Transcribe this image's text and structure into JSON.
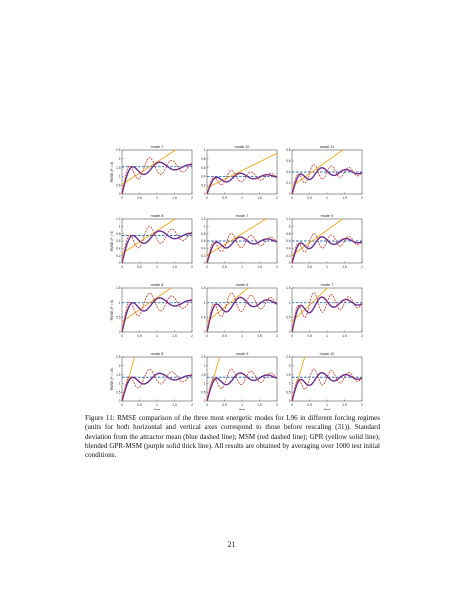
{
  "figure": {
    "ylabel_tpl": "RMSE (F = {F})",
    "xlabel": "time",
    "xticks": [
      "0",
      "0.5",
      "1",
      "1.5",
      "2"
    ],
    "colors": {
      "std": "#2d6fb3",
      "msm": "#c0392b",
      "gpr": "#f0a818",
      "blend": "#6a2c91"
    },
    "chart_data": [
      {
        "type": "line",
        "title": "mode 7",
        "forcing": "F = 4",
        "ylim": [
          0,
          2.5
        ],
        "yticks": [
          "0",
          "0.5",
          "1",
          "1.5",
          "2",
          "2.5"
        ],
        "std": 1.55
      },
      {
        "type": "line",
        "title": "mode 10",
        "forcing": "F = 4",
        "ylim": [
          0,
          1
        ],
        "yticks": [
          "0",
          "0.2",
          "0.4",
          "0.6",
          "0.8",
          "1"
        ],
        "std": 0.4
      },
      {
        "type": "line",
        "title": "mode 11",
        "forcing": "F = 4",
        "ylim": [
          0,
          0.8
        ],
        "yticks": [
          "0",
          "0.2",
          "0.4",
          "0.6",
          "0.8"
        ],
        "std": 0.4
      },
      {
        "type": "line",
        "title": "mode 8",
        "forcing": "F = 5",
        "ylim": [
          0,
          1.2
        ],
        "yticks": [
          "0",
          "0.2",
          "0.4",
          "0.6",
          "0.8",
          "1",
          "1.2"
        ],
        "std": 0.75
      },
      {
        "type": "line",
        "title": "mode 7",
        "forcing": "F = 5",
        "ylim": [
          0,
          1.2
        ],
        "yticks": [
          "0",
          "0.2",
          "0.4",
          "0.6",
          "0.8",
          "1",
          "1.2"
        ],
        "std": 0.6
      },
      {
        "type": "line",
        "title": "mode 9",
        "forcing": "F = 5",
        "ylim": [
          0,
          1.2
        ],
        "yticks": [
          "0",
          "0.2",
          "0.4",
          "0.6",
          "0.8",
          "1",
          "1.2"
        ],
        "std": 0.6
      },
      {
        "type": "line",
        "title": "mode 8",
        "forcing": "F = 6",
        "ylim": [
          0,
          1.5
        ],
        "yticks": [
          "0",
          "0.5",
          "1",
          "1.5"
        ],
        "std": 1.0
      },
      {
        "type": "line",
        "title": "mode 6",
        "forcing": "F = 6",
        "ylim": [
          0,
          1.5
        ],
        "yticks": [
          "0",
          "0.5",
          "1",
          "1.5"
        ],
        "std": 1.0
      },
      {
        "type": "line",
        "title": "mode 7",
        "forcing": "F = 6",
        "ylim": [
          0,
          1.5
        ],
        "yticks": [
          "0",
          "0.5",
          "1",
          "1.5"
        ],
        "std": 1.0
      },
      {
        "type": "line",
        "title": "mode 8",
        "forcing": "F = 16",
        "ylim": [
          0,
          2.5
        ],
        "yticks": [
          "0",
          "0.5",
          "1",
          "1.5",
          "2",
          "2.5"
        ],
        "std": 1.35
      },
      {
        "type": "line",
        "title": "mode 9",
        "forcing": "F = 16",
        "ylim": [
          0,
          2.5
        ],
        "yticks": [
          "0",
          "0.5",
          "1",
          "1.5",
          "2",
          "2.5"
        ],
        "std": 1.35
      },
      {
        "type": "line",
        "title": "mode 10",
        "forcing": "F = 16",
        "ylim": [
          0,
          2.5
        ],
        "yticks": [
          "0",
          "0.5",
          "1",
          "1.5",
          "2",
          "2.5"
        ],
        "std": 1.35
      }
    ]
  },
  "caption": "Figure 11: RMSE comparison of the three most energetic modes for L96 in different forcing regimes (units for both horizontal and vertical axes correspond to those before rescaling (31)). Standard deviation from the attractor mean (blue dashed line); MSM (red dashed line); GPR (yellow solid line); blended GPR-MSM (purple solid thick line). All results are obtained by averaging over 1000 test initial conditions.",
  "page_number": "21"
}
